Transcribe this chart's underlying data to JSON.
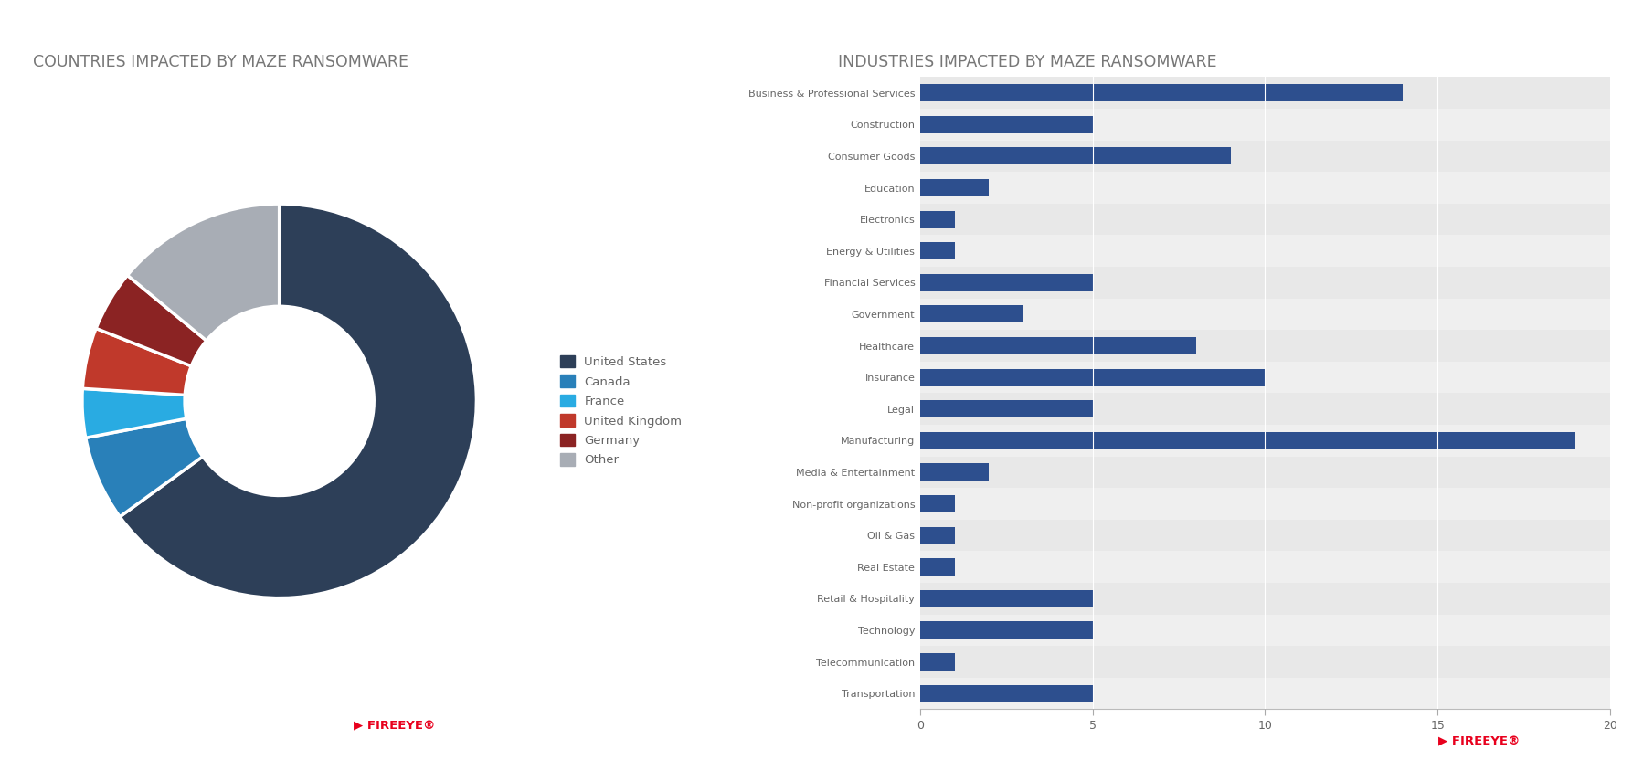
{
  "donut_labels": [
    "United States",
    "Canada",
    "France",
    "United Kingdom",
    "Germany",
    "Other"
  ],
  "donut_values": [
    65,
    7,
    4,
    5,
    5,
    14
  ],
  "donut_colors": [
    "#2d3f58",
    "#2980b9",
    "#29abe2",
    "#c0392b",
    "#8b2323",
    "#a8adb5"
  ],
  "donut_title": "COUNTRIES IMPACTED BY MAZE RANSOMWARE",
  "bar_title": "INDUSTRIES IMPACTED BY MAZE RANSOMWARE",
  "bar_categories": [
    "Business & Professional Services",
    "Construction",
    "Consumer Goods",
    "Education",
    "Electronics",
    "Energy & Utilities",
    "Financial Services",
    "Government",
    "Healthcare",
    "Insurance",
    "Legal",
    "Manufacturing",
    "Media & Entertainment",
    "Non-profit organizations",
    "Oil & Gas",
    "Real Estate",
    "Retail & Hospitality",
    "Technology",
    "Telecommunication",
    "Transportation"
  ],
  "bar_values": [
    14,
    5,
    9,
    2,
    1,
    1,
    5,
    3,
    8,
    10,
    5,
    19,
    2,
    1,
    1,
    1,
    5,
    5,
    1,
    5
  ],
  "bar_color": "#2d4f8e",
  "bar_xlim": [
    0,
    20
  ],
  "title_color": "#777777",
  "label_color": "#666666",
  "row_colors": [
    "#e8e8e8",
    "#efefef"
  ],
  "fireeye_red": "#e8001d"
}
